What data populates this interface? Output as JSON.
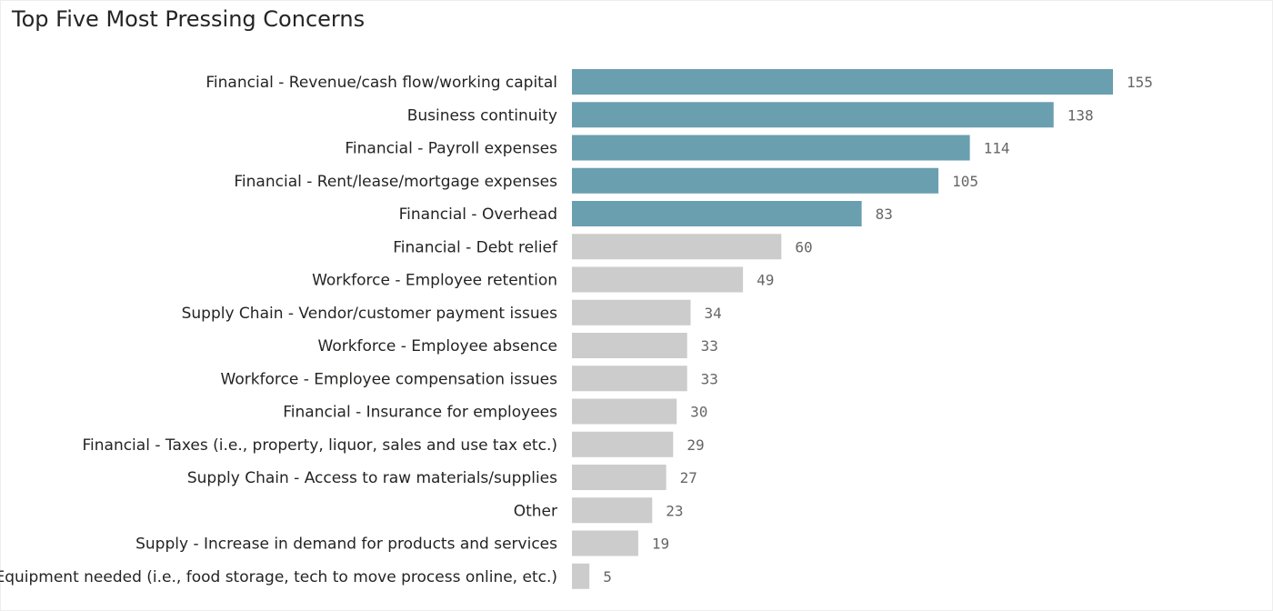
{
  "chart_data": {
    "type": "bar",
    "orientation": "horizontal",
    "title": "Top Five Most Pressing Concerns",
    "categories": [
      "Financial - Revenue/cash flow/working capital",
      "Business continuity",
      "Financial - Payroll expenses",
      "Financial - Rent/lease/mortgage expenses",
      "Financial - Overhead",
      "Financial - Debt relief",
      "Workforce - Employee retention",
      "Supply Chain - Vendor/customer payment issues",
      "Workforce - Employee absence",
      "Workforce - Employee compensation issues",
      "Financial - Insurance for employees",
      "Financial - Taxes (i.e., property, liquor, sales and use tax etc.)",
      "Supply Chain - Access to raw materials/supplies",
      "Other",
      "Supply - Increase in demand for products and services",
      "Equipment needed (i.e., food storage, tech to move process online, etc.)"
    ],
    "values": [
      155,
      138,
      114,
      105,
      83,
      60,
      49,
      34,
      33,
      33,
      30,
      29,
      27,
      23,
      19,
      5
    ],
    "highlighted_count": 5,
    "xlim": [
      0,
      155
    ],
    "grid": false,
    "data_labels": true,
    "colors": {
      "highlight": "#6a9fb0",
      "default": "#cccccc"
    }
  }
}
